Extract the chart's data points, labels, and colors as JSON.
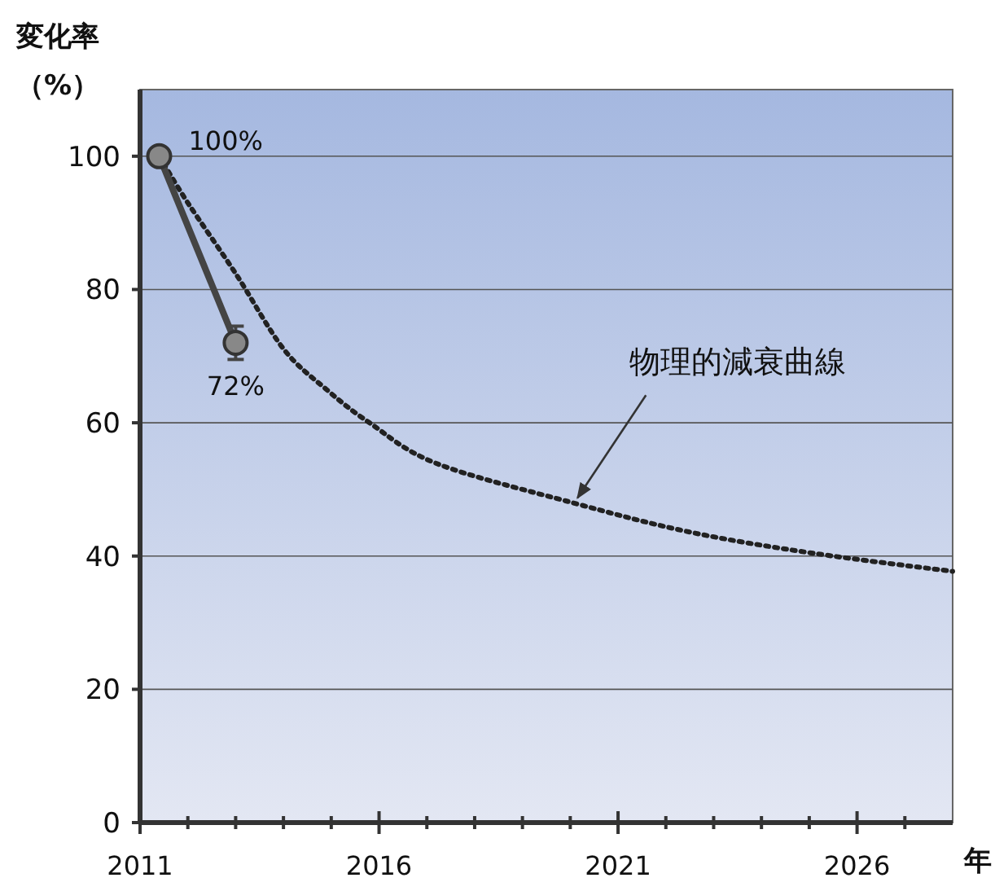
{
  "chart_data": {
    "type": "line",
    "ylabel": "変化率（%）",
    "xlabel": "年",
    "xlim": [
      2011,
      2028
    ],
    "ylim": [
      0,
      110
    ],
    "xticks": [
      2011,
      {
        "value": 2012,
        "label": null
      },
      {
        "value": 2013,
        "label": null
      },
      {
        "value": 2014,
        "label": null
      },
      {
        "value": 2015,
        "label": null
      },
      2016,
      {
        "value": 2017,
        "label": null
      },
      {
        "value": 2018,
        "label": null
      },
      {
        "value": 2019,
        "label": null
      },
      {
        "value": 2020,
        "label": null
      },
      2021,
      {
        "value": 2022,
        "label": null
      },
      {
        "value": 2023,
        "label": null
      },
      {
        "value": 2024,
        "label": null
      },
      {
        "value": 2025,
        "label": null
      },
      2026,
      {
        "value": 2027,
        "label": null
      }
    ],
    "yticks": [
      0,
      20,
      40,
      60,
      80,
      100
    ],
    "grid": "y",
    "series": [
      {
        "color": "#444444",
        "marker": "circle",
        "line_style": "solid",
        "x": [
          2011.4,
          2013
        ],
        "values": [
          100,
          72
        ],
        "errors": [
          null,
          2.5
        ],
        "value_labels": [
          "100%",
          "72%"
        ]
      },
      {
        "color": "#222222",
        "marker": "none",
        "line_style": "dotted",
        "x": [
          2011.4,
          2012,
          2013,
          2014,
          2014.9,
          2015.8,
          2017.2,
          2020.05,
          2022.5,
          2025.1,
          2028
        ],
        "values": [
          100,
          93,
          82.4,
          71.1,
          65,
          60,
          53.9,
          48,
          43.6,
          40.4,
          37.7
        ]
      }
    ],
    "annotations": [
      {
        "text": "物理的減衰曲線",
        "x": 2020.05,
        "y": 48
      }
    ]
  }
}
